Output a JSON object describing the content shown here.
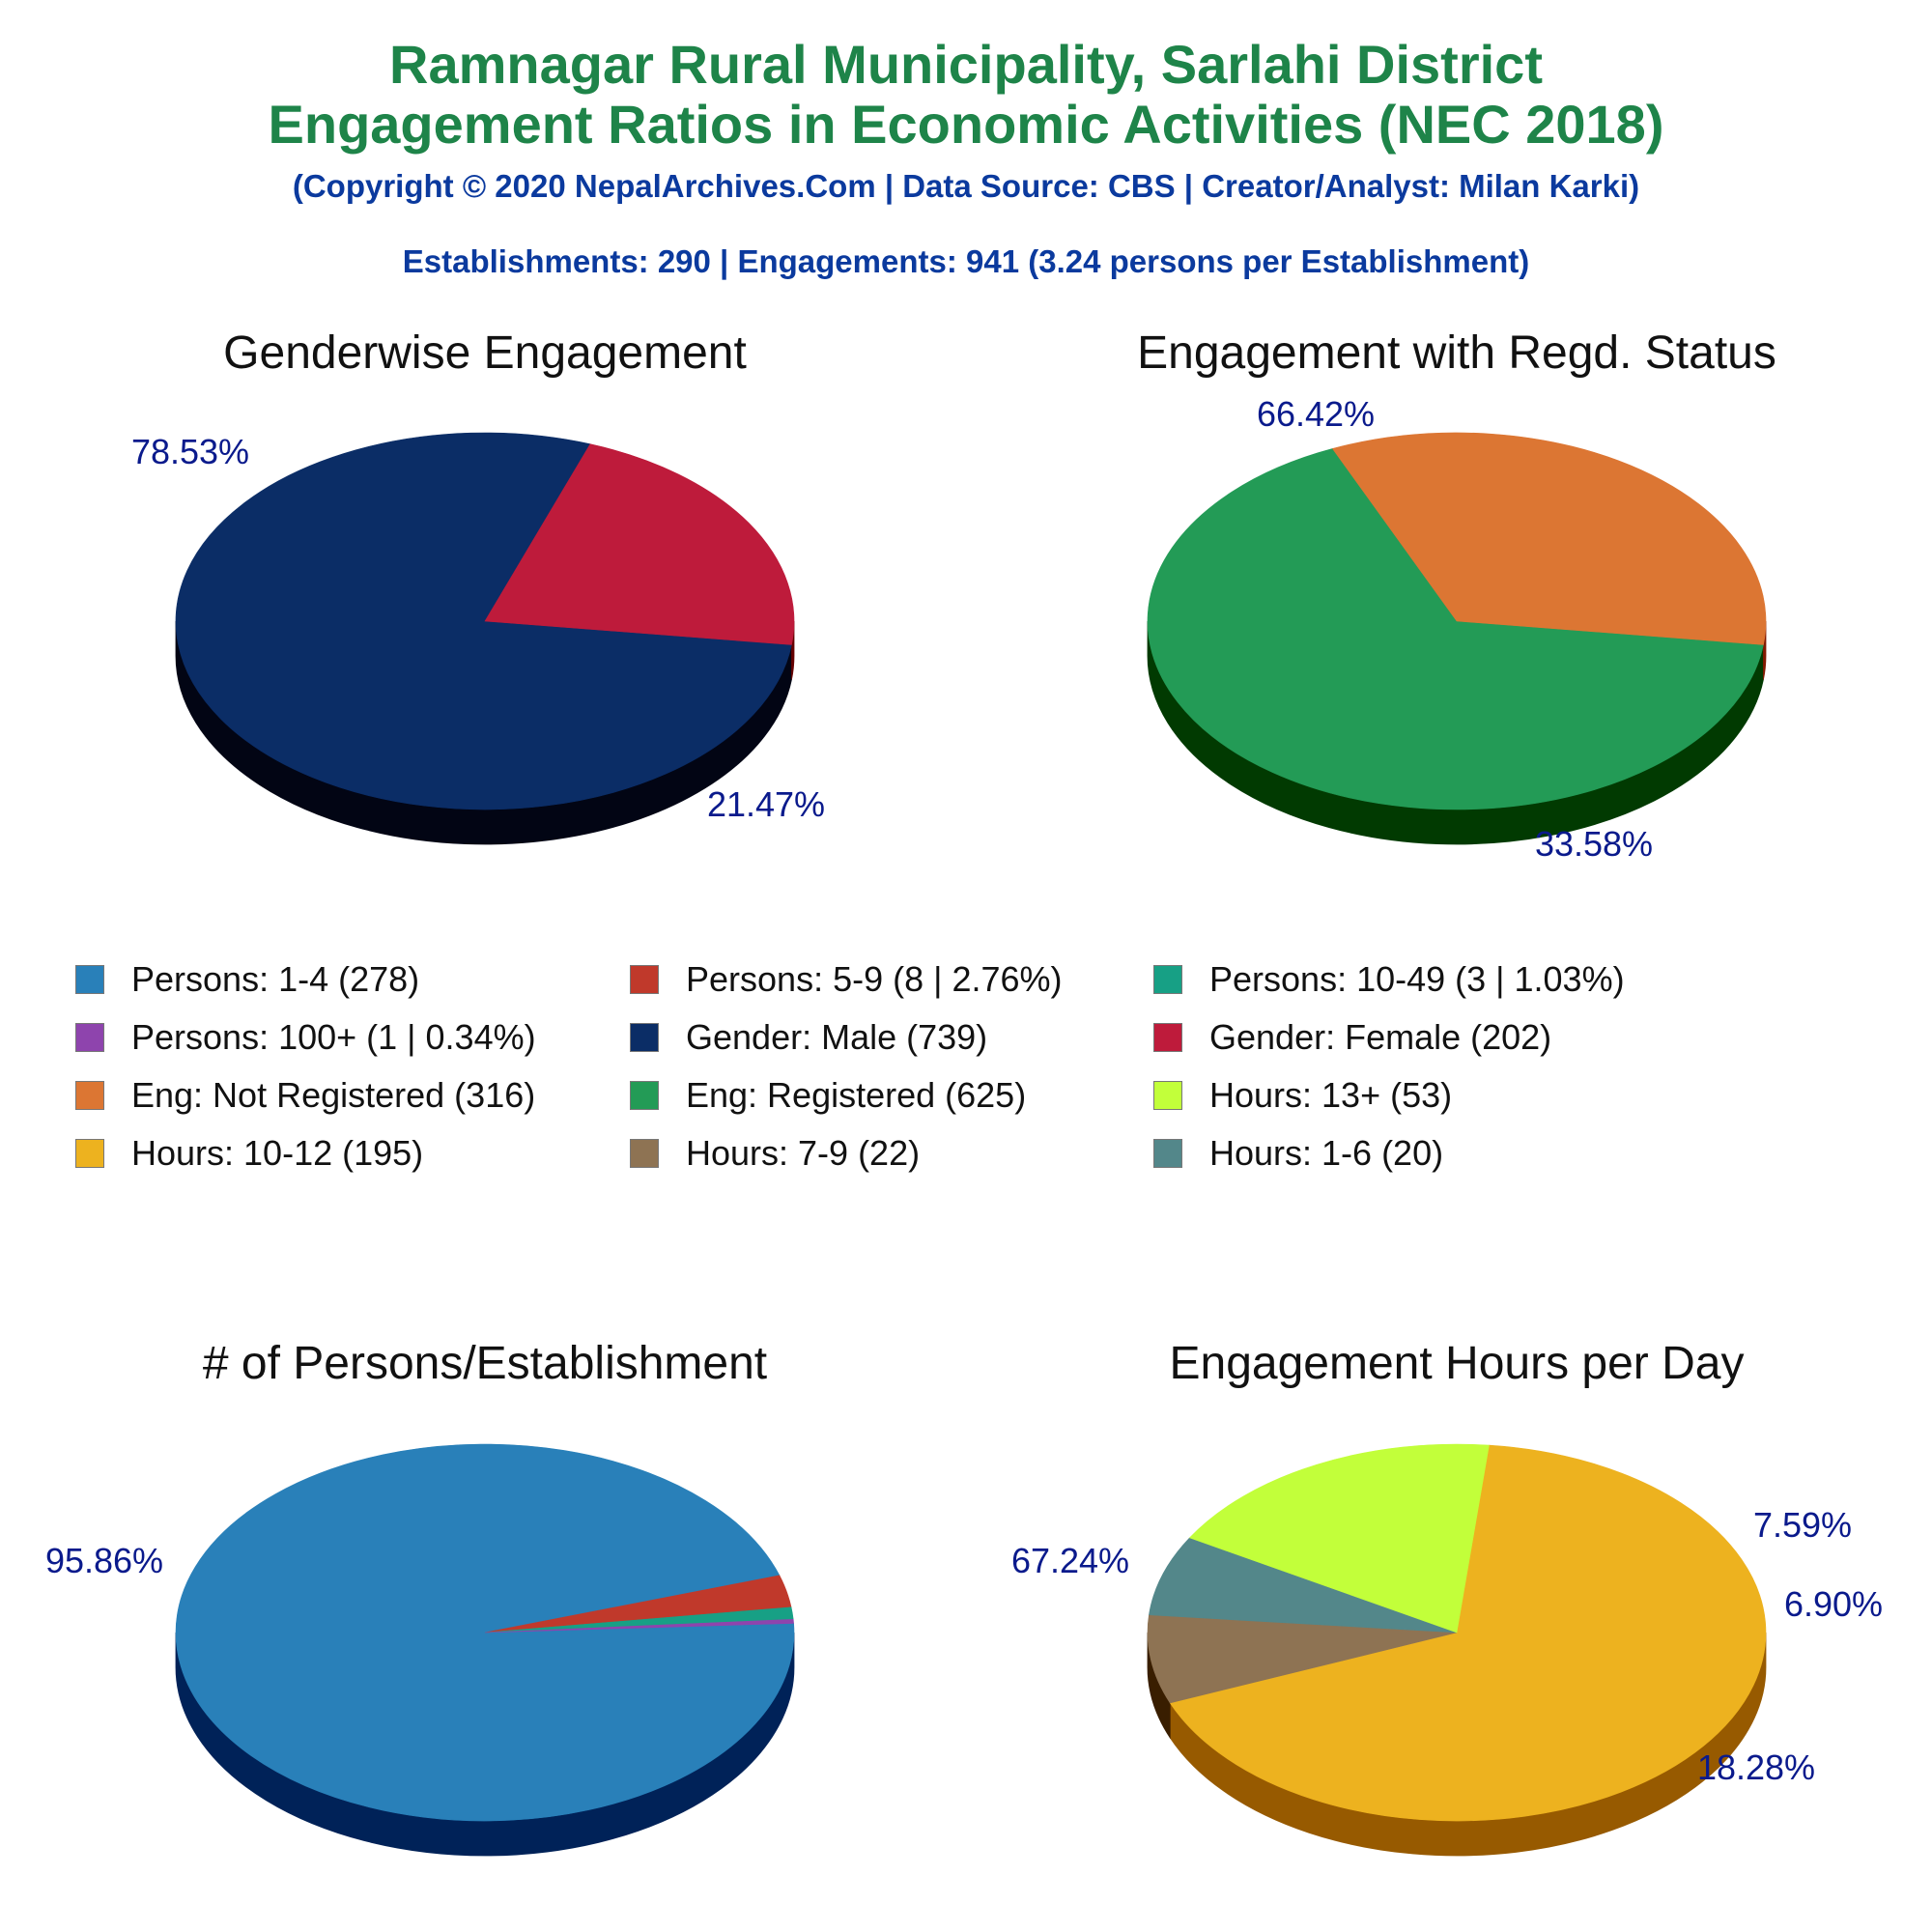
{
  "header": {
    "title_line1": "Ramnagar Rural Municipality, Sarlahi District",
    "title_line2": "Engagement Ratios in Economic Activities (NEC 2018)",
    "copyright": "(Copyright © 2020 NepalArchives.Com | Data Source: CBS | Creator/Analyst: Milan Karki)",
    "summary": "Establishments: 290 | Engagements: 941 (3.24 persons per Establishment)"
  },
  "chart_data": [
    {
      "type": "pie",
      "title": "Genderwise Engagement",
      "slices": [
        {
          "name": "Male",
          "value": 78.53,
          "label": "78.53%",
          "color": "#0b2d66",
          "side": "#020514"
        },
        {
          "name": "Female",
          "value": 21.47,
          "label": "21.47%",
          "color": "#be1b3b",
          "side": "#650000"
        }
      ]
    },
    {
      "type": "pie",
      "title": "Engagement with Regd. Status",
      "slices": [
        {
          "name": "Registered",
          "value": 66.42,
          "label": "66.42%",
          "color": "#239b56",
          "side": "#013a01"
        },
        {
          "name": "Not Registered",
          "value": 33.58,
          "label": "33.58%",
          "color": "#dc7633",
          "side": "#821a00"
        }
      ]
    },
    {
      "type": "pie",
      "title": "# of Persons/Establishment",
      "slices": [
        {
          "name": "1-4",
          "value": 95.86,
          "label": "95.86%",
          "color": "#2980b9",
          "side": "#002258"
        },
        {
          "name": "5-9",
          "value": 2.76,
          "label": "",
          "color": "#c0392b",
          "side": "#6a0000"
        },
        {
          "name": "10-49",
          "value": 1.03,
          "label": "",
          "color": "#17a085",
          "side": "#004a30"
        },
        {
          "name": "100+",
          "value": 0.34,
          "label": "",
          "color": "#8e44ad",
          "side": "#380058"
        }
      ]
    },
    {
      "type": "pie",
      "title": "Engagement Hours per Day",
      "slices": [
        {
          "name": "10-12",
          "value": 67.24,
          "label": "67.24%",
          "color": "#edb21f",
          "side": "#975a00"
        },
        {
          "name": "7-9",
          "value": 7.59,
          "label": "7.59%",
          "color": "#8e7353",
          "side": "#391e00"
        },
        {
          "name": "1-6",
          "value": 6.9,
          "label": "6.90%",
          "color": "#53878a",
          "side": "#003235"
        },
        {
          "name": "13+",
          "value": 18.28,
          "label": "18.28%",
          "color": "#c2ff3a",
          "side": "#6da500"
        }
      ]
    }
  ],
  "legend": [
    {
      "label": "Persons: 1-4 (278)",
      "color": "#2980b9"
    },
    {
      "label": "Persons: 5-9 (8 | 2.76%)",
      "color": "#c0392b"
    },
    {
      "label": "Persons: 10-49 (3 | 1.03%)",
      "color": "#17a085"
    },
    {
      "label": "Persons: 100+ (1 | 0.34%)",
      "color": "#8e44ad"
    },
    {
      "label": "Gender: Male (739)",
      "color": "#0b2d66"
    },
    {
      "label": "Gender: Female (202)",
      "color": "#be1b3b"
    },
    {
      "label": "Eng: Not Registered (316)",
      "color": "#dc7633"
    },
    {
      "label": "Eng: Registered (625)",
      "color": "#239b56"
    },
    {
      "label": "Hours: 13+ (53)",
      "color": "#c2ff3a"
    },
    {
      "label": "Hours: 10-12 (195)",
      "color": "#edb21f"
    },
    {
      "label": "Hours: 7-9 (22)",
      "color": "#8e7353"
    },
    {
      "label": "Hours: 1-6 (20)",
      "color": "#53878a"
    }
  ]
}
